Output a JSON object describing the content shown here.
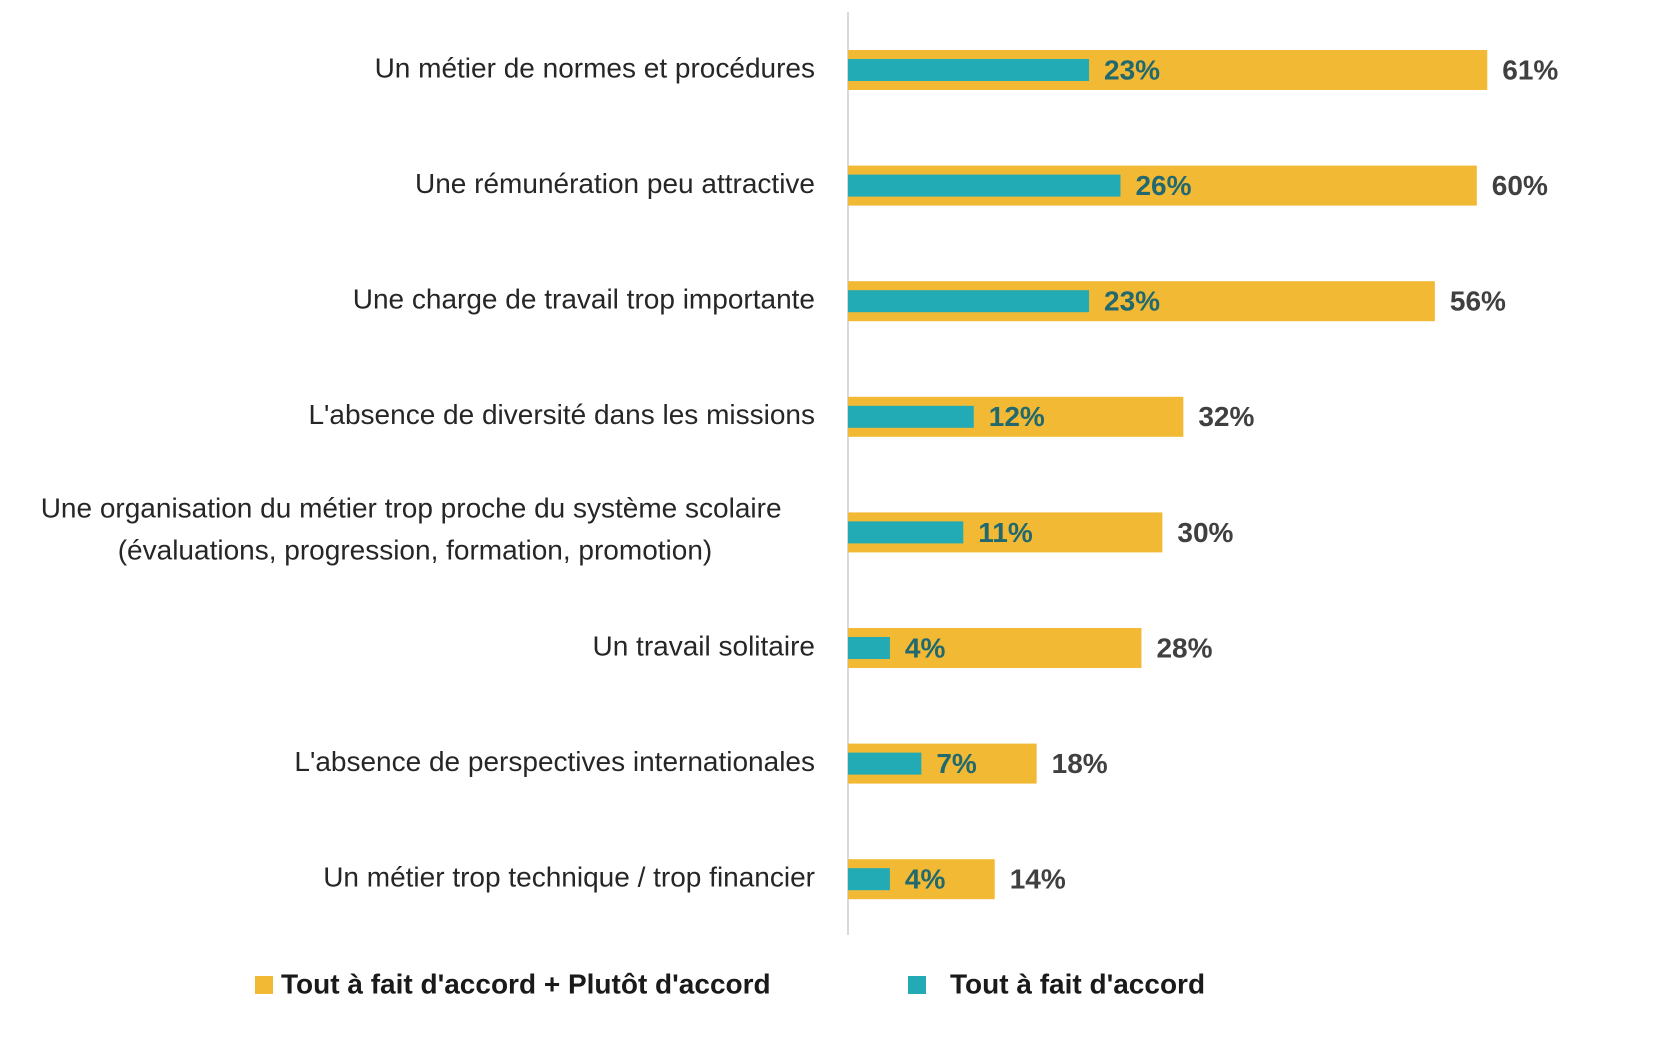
{
  "chart_data": {
    "type": "bar",
    "orientation": "horizontal",
    "overlap": true,
    "categories": [
      "Un métier de normes et procédures",
      "Une rémunération peu attractive",
      "Une charge de travail trop importante",
      "L'absence de diversité dans les missions",
      "Une organisation du métier trop proche du système scolaire (évaluations, progression, formation, promotion)",
      "Un travail solitaire",
      "L'absence de perspectives internationales",
      "Un métier trop technique / trop financier"
    ],
    "series": [
      {
        "name": "Tout à fait d'accord + Plutôt d'accord",
        "color": "#f2b935",
        "values": [
          61,
          60,
          56,
          32,
          30,
          28,
          18,
          14
        ],
        "value_labels": [
          "61%",
          "60%",
          "56%",
          "32%",
          "30%",
          "28%",
          "18%",
          "14%"
        ]
      },
      {
        "name": "Tout à fait d'accord",
        "color": "#22aab5",
        "values": [
          23,
          26,
          23,
          12,
          11,
          4,
          7,
          4
        ],
        "value_labels": [
          "23%",
          "26%",
          "23%",
          "12%",
          "11%",
          "4%",
          "7%",
          "4%"
        ]
      }
    ]
  }
}
